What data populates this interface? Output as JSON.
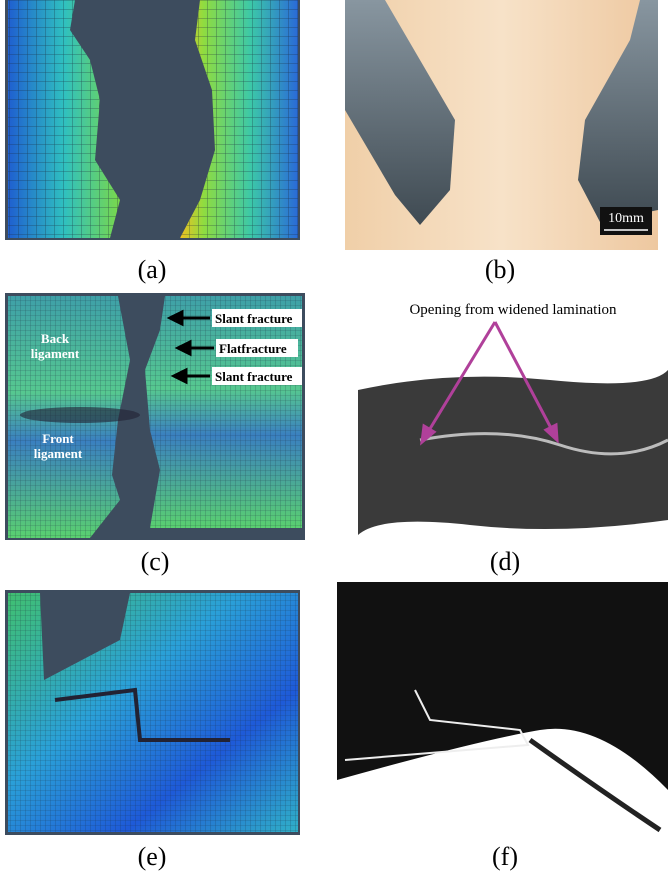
{
  "panels": [
    {
      "label": "(a)"
    },
    {
      "label": "(b)",
      "scale_bar": "10mm"
    },
    {
      "label": "(c)",
      "annotations": [
        "Slant fracture",
        "Flatfracture",
        "Slant fracture"
      ],
      "ligaments": [
        [
          "Back",
          "ligament"
        ],
        [
          "Front",
          "ligament"
        ]
      ]
    },
    {
      "label": "(d)",
      "caption": "Opening from widened lamination"
    },
    {
      "label": "(e)"
    },
    {
      "label": "(f)"
    }
  ]
}
